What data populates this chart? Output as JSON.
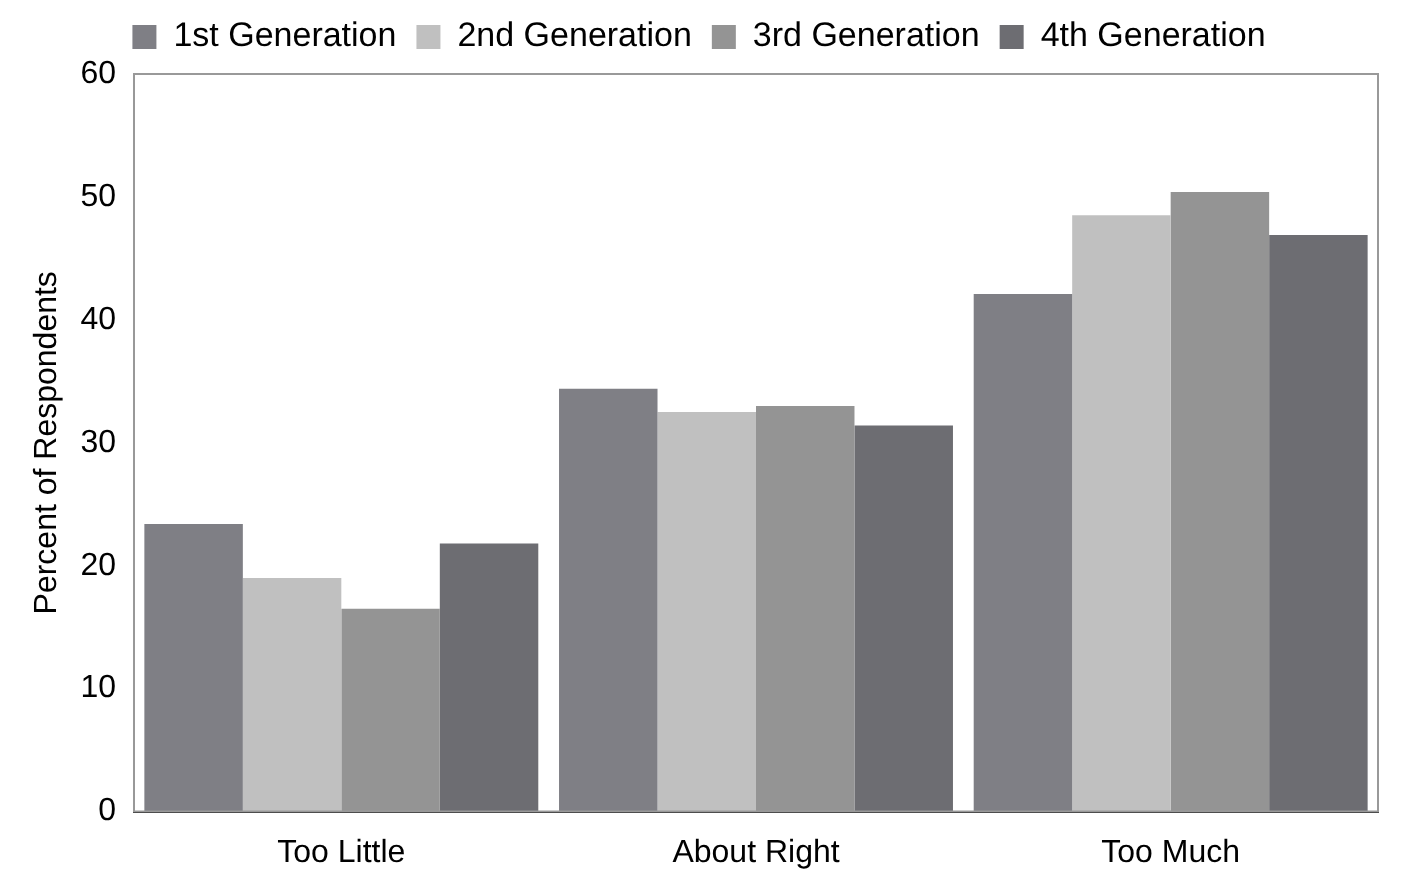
{
  "chart_data": {
    "type": "bar",
    "ylabel": "Percent of Respondents",
    "categories": [
      "Too Little",
      "About Right",
      "Too Much"
    ],
    "series": [
      {
        "name": "1st Generation",
        "color": "#7f7f85",
        "values": [
          23.4,
          34.4,
          42.1
        ]
      },
      {
        "name": "2nd Generation",
        "color": "#c0c0c0",
        "values": [
          19.0,
          32.5,
          48.5
        ]
      },
      {
        "name": "3rd Generation",
        "color": "#949494",
        "values": [
          16.5,
          33.0,
          50.4
        ]
      },
      {
        "name": "4th Generation",
        "color": "#6d6d72",
        "values": [
          21.8,
          31.4,
          46.9
        ]
      }
    ],
    "ylim": [
      0,
      60
    ],
    "yticks": [
      0,
      10,
      20,
      30,
      40,
      50,
      60
    ],
    "grid": false,
    "legend": "top"
  }
}
